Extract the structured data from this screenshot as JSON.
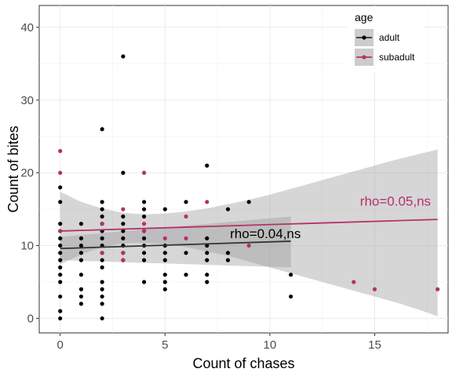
{
  "chart_data": {
    "type": "scatter",
    "xlabel": "Count of chases",
    "ylabel": "Count of bites",
    "xlim": [
      -1,
      18.5
    ],
    "ylim": [
      -2,
      43
    ],
    "x_ticks": [
      0,
      5,
      10,
      15
    ],
    "y_ticks": [
      0,
      10,
      20,
      30,
      40
    ],
    "x_minor_ticks": [
      2.5,
      7.5,
      12.5,
      17.5
    ],
    "y_minor_ticks": [
      5,
      15,
      25,
      35
    ],
    "grid": true,
    "legend": {
      "title": "age",
      "placement": "top-right"
    },
    "series": [
      {
        "name": "adult",
        "color": "#000000",
        "points": [
          [
            0,
            0
          ],
          [
            0,
            1
          ],
          [
            0,
            3
          ],
          [
            0,
            5
          ],
          [
            0,
            6
          ],
          [
            0,
            7
          ],
          [
            0,
            8
          ],
          [
            0,
            9
          ],
          [
            0,
            10
          ],
          [
            0,
            11
          ],
          [
            0,
            12
          ],
          [
            0,
            13
          ],
          [
            0,
            16
          ],
          [
            0,
            18
          ],
          [
            1,
            2
          ],
          [
            1,
            3
          ],
          [
            1,
            4
          ],
          [
            1,
            6
          ],
          [
            1,
            8
          ],
          [
            1,
            9
          ],
          [
            1,
            10
          ],
          [
            1,
            11
          ],
          [
            1,
            13
          ],
          [
            2,
            0
          ],
          [
            2,
            2
          ],
          [
            2,
            3
          ],
          [
            2,
            4
          ],
          [
            2,
            5
          ],
          [
            2,
            7
          ],
          [
            2,
            8
          ],
          [
            2,
            9
          ],
          [
            2,
            10
          ],
          [
            2,
            11
          ],
          [
            2,
            12
          ],
          [
            2,
            13
          ],
          [
            2,
            14
          ],
          [
            2,
            15
          ],
          [
            2,
            16
          ],
          [
            2,
            26
          ],
          [
            3,
            8
          ],
          [
            3,
            9
          ],
          [
            3,
            10
          ],
          [
            3,
            11
          ],
          [
            3,
            12
          ],
          [
            3,
            13
          ],
          [
            3,
            14
          ],
          [
            3,
            20
          ],
          [
            3,
            36
          ],
          [
            4,
            5
          ],
          [
            4,
            8
          ],
          [
            4,
            9
          ],
          [
            4,
            10
          ],
          [
            4,
            11
          ],
          [
            4,
            12
          ],
          [
            4,
            14
          ],
          [
            4,
            15
          ],
          [
            4,
            16
          ],
          [
            5,
            4
          ],
          [
            5,
            5
          ],
          [
            5,
            6
          ],
          [
            5,
            8
          ],
          [
            5,
            9
          ],
          [
            5,
            10
          ],
          [
            5,
            15
          ],
          [
            6,
            6
          ],
          [
            6,
            9
          ],
          [
            6,
            16
          ],
          [
            7,
            5
          ],
          [
            7,
            6
          ],
          [
            7,
            8
          ],
          [
            7,
            9
          ],
          [
            7,
            10
          ],
          [
            7,
            11
          ],
          [
            7,
            21
          ],
          [
            8,
            8
          ],
          [
            8,
            9
          ],
          [
            8,
            15
          ],
          [
            9,
            16
          ],
          [
            11,
            3
          ],
          [
            11,
            6
          ]
        ],
        "trend": {
          "x": [
            0,
            11
          ],
          "y": [
            9.6,
            10.6
          ]
        },
        "ci": {
          "x": [
            0,
            11
          ],
          "lower": [
            8.0,
            7.0
          ],
          "upper": [
            11.2,
            14.0
          ]
        },
        "annotation": {
          "text": "rho=0.04,ns",
          "x": 8.1,
          "y": 11
        }
      },
      {
        "name": "subadult",
        "color": "#b5306b",
        "points": [
          [
            0,
            23
          ],
          [
            0,
            20
          ],
          [
            0,
            12
          ],
          [
            2,
            13
          ],
          [
            2,
            9
          ],
          [
            3,
            15
          ],
          [
            3,
            9
          ],
          [
            3,
            8
          ],
          [
            4,
            20
          ],
          [
            4,
            13
          ],
          [
            4,
            12
          ],
          [
            5,
            11
          ],
          [
            6,
            14
          ],
          [
            6,
            11
          ],
          [
            7,
            16
          ],
          [
            9,
            10
          ],
          [
            14,
            5
          ],
          [
            15,
            4
          ],
          [
            18,
            4
          ]
        ],
        "trend": {
          "x": [
            0,
            18
          ],
          "y": [
            12.0,
            13.6
          ]
        },
        "ci": {
          "x": [
            0,
            1,
            2,
            3,
            4,
            5,
            6,
            7,
            8,
            9,
            10,
            11,
            12,
            13,
            14,
            15,
            16,
            17,
            18
          ],
          "lower": [
            7.4,
            8.8,
            9.8,
            10.3,
            10.4,
            10.2,
            9.8,
            9.2,
            8.6,
            7.8,
            7.0,
            6.2,
            5.4,
            4.6,
            3.8,
            3.0,
            2.2,
            1.3,
            0.3
          ],
          "upper": [
            17.4,
            16.0,
            15.1,
            14.5,
            14.3,
            14.4,
            14.7,
            15.1,
            15.7,
            16.3,
            17.0,
            17.8,
            18.6,
            19.4,
            20.2,
            21.0,
            21.8,
            22.5,
            23.2
          ]
        },
        "annotation": {
          "text": "rho=0.05,ns",
          "x": 14.3,
          "y": 15.5
        }
      }
    ]
  }
}
